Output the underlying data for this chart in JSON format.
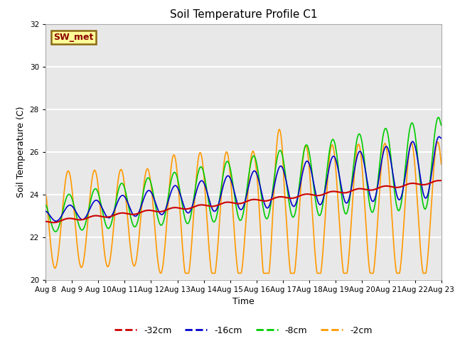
{
  "title": "Soil Temperature Profile C1",
  "xlabel": "Time",
  "ylabel": "Soil Temperature (C)",
  "ylim": [
    20,
    32
  ],
  "background_color": "#e8e8e8",
  "legend_label": "SW_met",
  "legend_box_color": "#ffff99",
  "legend_box_edge": "#8B6914",
  "series_colors": {
    "-32cm": "#cc0000",
    "-16cm": "#0000cc",
    "-8cm": "#00cc00",
    "-2cm": "#ff9900"
  },
  "x_tick_labels": [
    "Aug 8",
    "Aug 9",
    "Aug 10",
    "Aug 11",
    "Aug 12",
    "Aug 13",
    "Aug 14",
    "Aug 15",
    "Aug 16",
    "Aug 17",
    "Aug 18",
    "Aug 19",
    "Aug 20",
    "Aug 21",
    "Aug 22",
    "Aug 23"
  ],
  "x_ticks": [
    0,
    1,
    2,
    3,
    4,
    5,
    6,
    7,
    8,
    9,
    10,
    11,
    12,
    13,
    14,
    15
  ],
  "yticks": [
    20,
    22,
    24,
    26,
    28,
    30,
    32
  ]
}
